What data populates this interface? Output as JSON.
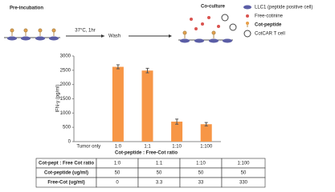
{
  "diagram": {
    "steps": [
      "Pre-incubation",
      "37°C, 1hr",
      "Wash",
      "Co-culture"
    ],
    "legend": [
      "LLC1  (peptide  positive cell)",
      "Free-cotinine",
      "Cot-peptide",
      "CotCAR T cell"
    ]
  },
  "chart_data": {
    "type": "bar",
    "y_label": "IFN-γ (pg/ml)",
    "x_label": "Cot-peptide  : Free-Cot ratio",
    "categories": [
      "Tumor only",
      "1:0",
      "1:1",
      "1:10",
      "1:100"
    ],
    "values": [
      0,
      2620,
      2490,
      700,
      610
    ],
    "errors": [
      0,
      70,
      80,
      90,
      60
    ],
    "color": "#f79646",
    "ylim": [
      0,
      3000
    ],
    "yticks": [
      0,
      500,
      1000,
      1500,
      2000,
      2500,
      3000
    ],
    "grid": false
  },
  "table": {
    "rows": [
      [
        "Cot-pept : Free Cot ratio",
        "1:0",
        "1:1",
        "1:10",
        "1:100"
      ],
      [
        "Cot-peptide  (ug/ml)",
        "50",
        "50",
        "50",
        "50"
      ],
      [
        "Free-Cot   (ug/ml)",
        "0",
        "3.3",
        "33",
        "330"
      ]
    ]
  }
}
